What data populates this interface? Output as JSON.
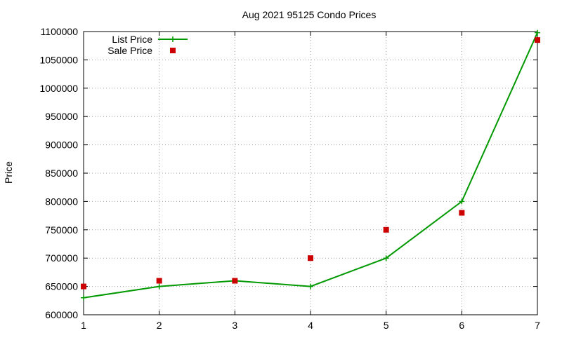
{
  "chart_data": {
    "type": "line",
    "title": "Aug 2021 95125 Condo Prices",
    "xlabel": "",
    "ylabel": "Price",
    "x": [
      1,
      2,
      3,
      4,
      5,
      6,
      7
    ],
    "xlim": [
      1,
      7
    ],
    "ylim": [
      600000,
      1100000
    ],
    "xticks": [
      "1",
      "2",
      "3",
      "4",
      "5",
      "6",
      "7"
    ],
    "yticks": [
      "600000",
      "650000",
      "700000",
      "750000",
      "800000",
      "850000",
      "900000",
      "950000",
      "1000000",
      "1050000",
      "1100000"
    ],
    "grid": true,
    "legend_position": "top-left",
    "series": [
      {
        "name": "List Price",
        "style": "line-plus",
        "color": "#009900",
        "values": [
          630000,
          650000,
          660000,
          650000,
          700000,
          800000,
          1098000
        ]
      },
      {
        "name": "Sale Price",
        "style": "square-points",
        "color": "#cc0000",
        "values": [
          650000,
          660000,
          660000,
          700000,
          750000,
          780000,
          1085000
        ]
      }
    ]
  }
}
